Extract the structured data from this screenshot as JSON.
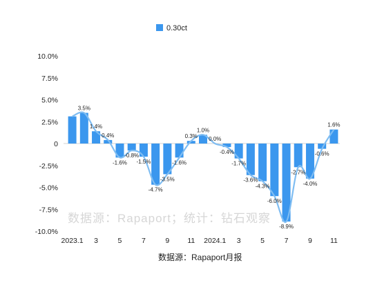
{
  "chart_data": {
    "type": "bar",
    "series": [
      {
        "name": "0.30ct",
        "values": [
          3.1,
          3.5,
          1.4,
          0.4,
          -1.6,
          -0.8,
          -1.5,
          -4.7,
          -3.5,
          -1.6,
          0.3,
          1.0,
          0.0,
          -0.4,
          -1.7,
          -3.6,
          -4.3,
          -6.0,
          -8.9,
          -2.7,
          -4.0,
          -0.6,
          1.6
        ]
      }
    ],
    "categories": [
      "2023.1",
      "2",
      "3",
      "4",
      "5",
      "6",
      "7",
      "8",
      "9",
      "10",
      "11",
      "12",
      "2024.1",
      "2",
      "3",
      "4",
      "5",
      "6",
      "7",
      "8",
      "9",
      "10",
      "11"
    ],
    "x_tick_labels": [
      "2023.1",
      "3",
      "5",
      "7",
      "9",
      "11",
      "2024.1",
      "3",
      "5",
      "7",
      "9",
      "11"
    ],
    "data_labels": [
      "",
      "3.5%",
      "1.4%",
      "0.4%",
      "-1.6%",
      "-0.8%",
      "-1.5%",
      "-4.7%",
      "-3.5%",
      "-1.6%",
      "0.3%",
      "1.0%",
      "0.0%",
      "-0.4%",
      "-1.7%",
      "-3.6%",
      "-4.3%",
      "-6.0%",
      "-8.9%",
      "-2.7%",
      "-4.0%",
      "-0.6%",
      "1.6%"
    ],
    "y_tick_labels": [
      "10.0%",
      "7.5%",
      "5.0%",
      "2.5%",
      "0",
      "-2.5%",
      "-5.0%",
      "-7.5%",
      "-10.0%"
    ],
    "ylim": [
      -10,
      10
    ],
    "trendline": "smoothed",
    "grid": false,
    "legend_position": "top-center",
    "colors": {
      "bar": "#3b97ee",
      "line": "#7fbdf2"
    },
    "watermark": "数据源：Rapaport；统计：钻石观察",
    "source_note": "数据源：Rapaport月报"
  }
}
